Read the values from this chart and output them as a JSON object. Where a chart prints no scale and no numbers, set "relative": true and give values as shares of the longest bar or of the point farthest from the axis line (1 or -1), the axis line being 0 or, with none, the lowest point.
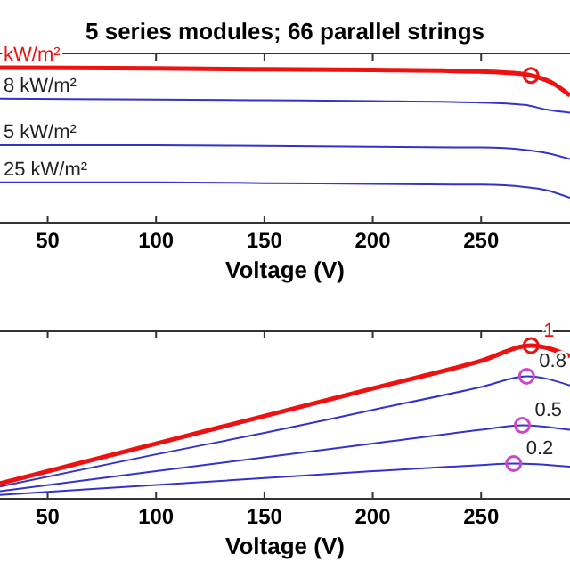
{
  "chart_data": [
    {
      "type": "line",
      "title": "5 series modules; 66 parallel strings",
      "xlabel": "Voltage (V)",
      "relative": true,
      "xlim": [
        28,
        291
      ],
      "xticks": [
        50,
        100,
        150,
        200,
        250
      ],
      "grid": false,
      "series": [
        {
          "name": "kW/m²",
          "color": "#ee1111",
          "x": [
            28,
            100,
            150,
            200,
            250,
            265,
            273,
            283,
            291
          ],
          "values": [
            1.0,
            0.995,
            0.99,
            0.985,
            0.975,
            0.965,
            0.95,
            0.9,
            0.82
          ]
        },
        {
          "name": "8 kW/m²",
          "color": "#3333cc",
          "x": [
            28,
            100,
            150,
            200,
            250,
            270,
            280,
            291
          ],
          "values": [
            0.8,
            0.795,
            0.79,
            0.785,
            0.775,
            0.76,
            0.73,
            0.71
          ]
        },
        {
          "name": "5 kW/m²",
          "color": "#3333cc",
          "x": [
            28,
            100,
            150,
            200,
            250,
            270,
            280,
            291
          ],
          "values": [
            0.5,
            0.5,
            0.495,
            0.49,
            0.485,
            0.47,
            0.45,
            0.41
          ]
        },
        {
          "name": "25 kW/m²",
          "color": "#3333cc",
          "x": [
            28,
            100,
            150,
            200,
            250,
            270,
            280,
            291
          ],
          "values": [
            0.26,
            0.26,
            0.255,
            0.25,
            0.245,
            0.23,
            0.21,
            0.16
          ]
        },
        {
          "type": "scatter",
          "marker": "circle",
          "color": "#ee1111",
          "x": [
            273
          ],
          "values": [
            0.95
          ]
        }
      ]
    },
    {
      "type": "line",
      "xlabel": "Voltage (V)",
      "relative": true,
      "xlim": [
        28,
        291
      ],
      "xticks": [
        50,
        100,
        150,
        200,
        250
      ],
      "grid": false,
      "series": [
        {
          "name": "1",
          "color": "#ee1111",
          "x": [
            28,
            100,
            150,
            200,
            250,
            273,
            291
          ],
          "values": [
            0.1,
            0.36,
            0.54,
            0.72,
            0.9,
            1.0,
            0.93
          ]
        },
        {
          "name": "0.8",
          "color": "#3333cc",
          "x": [
            28,
            100,
            150,
            200,
            250,
            271,
            291
          ],
          "values": [
            0.08,
            0.29,
            0.43,
            0.58,
            0.73,
            0.8,
            0.74
          ]
        },
        {
          "name": "0.5",
          "color": "#3333cc",
          "x": [
            28,
            100,
            150,
            200,
            250,
            269,
            291
          ],
          "values": [
            0.05,
            0.18,
            0.27,
            0.36,
            0.45,
            0.48,
            0.45
          ]
        },
        {
          "name": "0.2",
          "color": "#3333cc",
          "x": [
            28,
            100,
            150,
            200,
            250,
            265,
            291
          ],
          "values": [
            0.025,
            0.09,
            0.135,
            0.18,
            0.22,
            0.23,
            0.21
          ]
        },
        {
          "type": "scatter",
          "marker": "circle",
          "color": "#ee1111",
          "x": [
            273
          ],
          "values": [
            1.0
          ]
        },
        {
          "type": "scatter",
          "marker": "circle",
          "color": "#cc44cc",
          "x": [
            271,
            269,
            265
          ],
          "values": [
            0.8,
            0.48,
            0.23
          ]
        }
      ]
    }
  ]
}
